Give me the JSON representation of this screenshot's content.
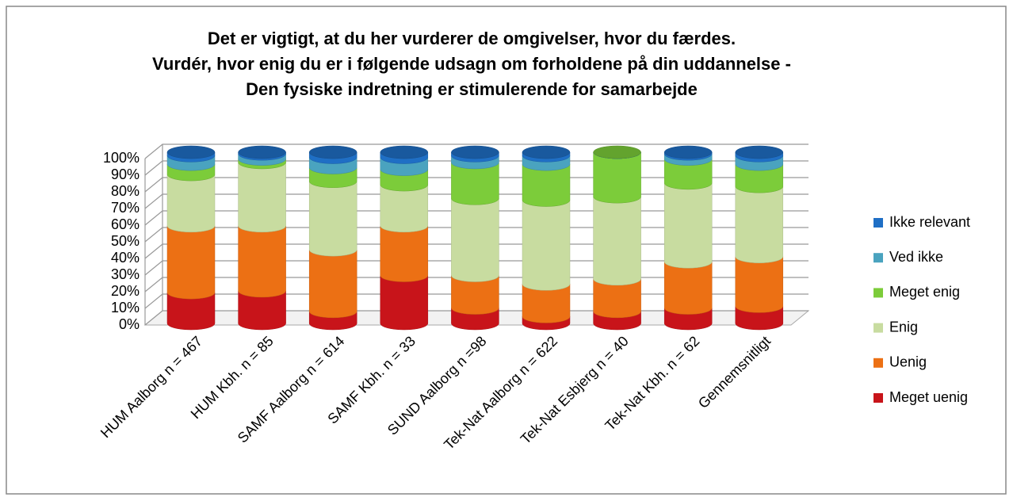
{
  "chart_data": {
    "type": "bar3d_stacked",
    "title": [
      "Det er vigtigt, at du her vurderer de omgivelser, hvor du færdes.",
      "Vurdér, hvor enig du er i følgende udsagn om forholdene på din uddannelse -",
      "Den fysiske indretning er stimulerende for samarbejde"
    ],
    "categories": [
      "HUM Aalborg n = 467",
      "HUM Kbh. n = 85",
      "SAMF Aalborg n = 614",
      "SAMF Kbh. n = 33",
      "SUND Aalborg n =98",
      "Tek-Nat Aalborg n = 622",
      "Tek-Nat Esbjerg n = 40",
      "Tek-Nat Kbh. n = 62",
      "Gennemsnitligt"
    ],
    "series": [
      {
        "name": "Meget uenig",
        "color": "#c8141a",
        "values": [
          18,
          19,
          7,
          28,
          9,
          4,
          7,
          9,
          10
        ]
      },
      {
        "name": "Uenig",
        "color": "#ec7014",
        "values": [
          39,
          38,
          36,
          29,
          19,
          19,
          19,
          27,
          29
        ]
      },
      {
        "name": "Enig",
        "color": "#c8dca0",
        "values": [
          30,
          37,
          40,
          24,
          45,
          49,
          48,
          46,
          41
        ]
      },
      {
        "name": "Meget enig",
        "color": "#7ccc3a",
        "values": [
          6,
          2,
          8,
          9,
          21,
          21,
          26,
          14,
          13
        ]
      },
      {
        "name": "Ved ikke",
        "color": "#4aa3bf",
        "values": [
          5,
          3,
          6,
          7,
          4,
          5,
          0,
          3,
          5
        ]
      },
      {
        "name": "Ikke relevant",
        "color": "#1f6fc5",
        "values": [
          2,
          1,
          3,
          3,
          2,
          2,
          0,
          1,
          2
        ]
      }
    ],
    "ylim": [
      0,
      100
    ],
    "yticks": [
      {
        "value": 0,
        "label": "0%"
      },
      {
        "value": 10,
        "label": "10%"
      },
      {
        "value": 20,
        "label": "20%"
      },
      {
        "value": 30,
        "label": "30%"
      },
      {
        "value": 40,
        "label": "40%"
      },
      {
        "value": 50,
        "label": "50%"
      },
      {
        "value": 60,
        "label": "60%"
      },
      {
        "value": 70,
        "label": "70%"
      },
      {
        "value": 80,
        "label": "80%"
      },
      {
        "value": 90,
        "label": "90%"
      },
      {
        "value": 100,
        "label": "100%"
      }
    ],
    "grid": true,
    "legend": "right"
  }
}
